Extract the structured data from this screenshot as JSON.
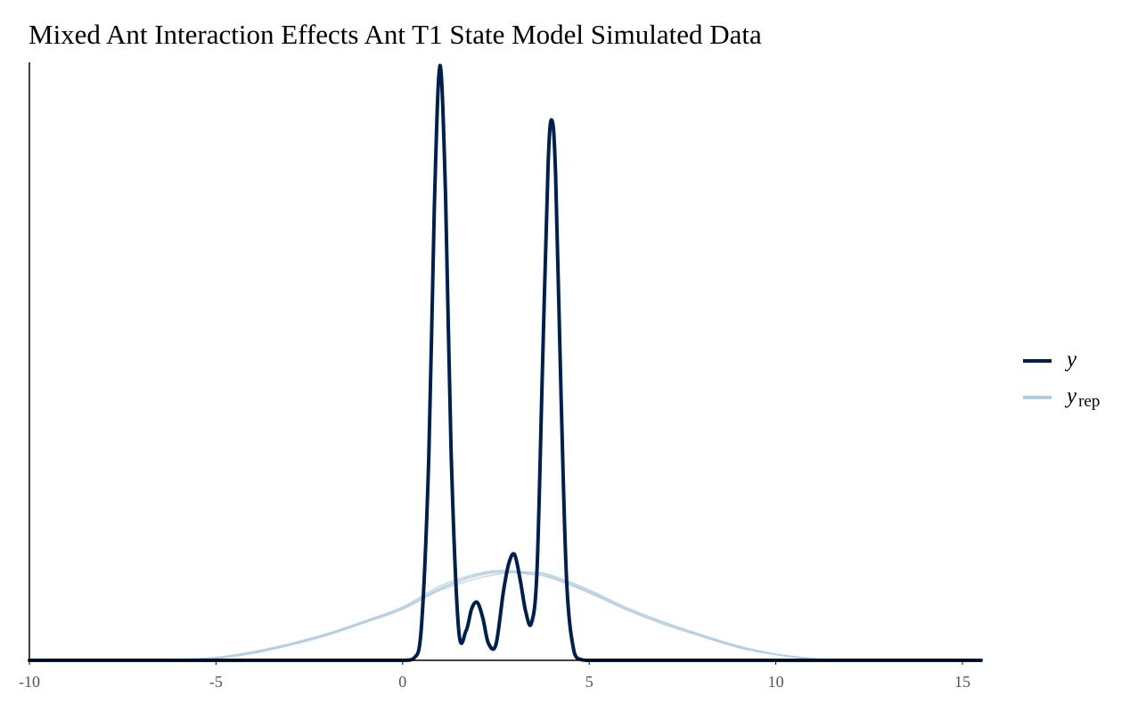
{
  "chart_data": {
    "type": "line",
    "title": "Mixed Ant Interaction Effects Ant T1 State Model Simulated Data",
    "xlabel": "",
    "ylabel": "",
    "xlim": [
      -10,
      15.5
    ],
    "ylim": [
      0,
      0.95
    ],
    "x_ticks": [
      -10,
      -5,
      0,
      5,
      10,
      15
    ],
    "x_tick_labels": [
      "-10",
      "-5",
      "0",
      "5",
      "10",
      "15"
    ],
    "y_ticks_shown": false,
    "grid": false,
    "legend_position": "right",
    "legend": [
      {
        "key": "y",
        "label": "y",
        "subscript": "",
        "color": "#011f4b"
      },
      {
        "key": "yrep",
        "label": "y",
        "subscript": "rep",
        "color": "#b3cde0"
      }
    ],
    "series": [
      {
        "name": "y",
        "color": "#011f4b",
        "x": [
          -10,
          -5,
          -1,
          0,
          0.3,
          0.5,
          0.7,
          0.85,
          1.0,
          1.15,
          1.3,
          1.5,
          1.7,
          1.85,
          2.0,
          2.15,
          2.3,
          2.5,
          2.7,
          2.85,
          3.0,
          3.15,
          3.3,
          3.45,
          3.6,
          3.75,
          3.9,
          4.0,
          4.1,
          4.25,
          4.4,
          4.6,
          4.8,
          5,
          6,
          10,
          15.5
        ],
        "y": [
          0,
          0,
          0,
          0,
          0.003,
          0.05,
          0.32,
          0.72,
          0.945,
          0.74,
          0.33,
          0.05,
          0.047,
          0.082,
          0.092,
          0.067,
          0.027,
          0.025,
          0.109,
          0.155,
          0.168,
          0.128,
          0.077,
          0.059,
          0.142,
          0.47,
          0.79,
          0.858,
          0.77,
          0.41,
          0.12,
          0.012,
          0.001,
          0,
          0,
          0,
          0
        ]
      },
      {
        "name": "yrep",
        "color": "#b3cde0",
        "x": [
          -10,
          -8,
          -6,
          -5,
          -4,
          -3,
          -2,
          -1,
          0,
          1,
          2,
          2.7,
          3.5,
          4,
          5,
          6,
          7,
          8,
          9,
          10,
          11,
          12,
          13,
          15.5
        ],
        "y": [
          0,
          0,
          0.001,
          0.004,
          0.012,
          0.025,
          0.041,
          0.061,
          0.082,
          0.113,
          0.134,
          0.14,
          0.136,
          0.131,
          0.108,
          0.081,
          0.058,
          0.039,
          0.021,
          0.009,
          0.002,
          0,
          0,
          0
        ]
      },
      {
        "name": "yrep",
        "color": "#b3cde0",
        "x": [
          -10,
          -8,
          -6,
          -5,
          -4,
          -3,
          -2,
          -1,
          0,
          1,
          2,
          2.7,
          3.5,
          4,
          5,
          6,
          7,
          8,
          9,
          10,
          11,
          12,
          13,
          15.5
        ],
        "y": [
          0,
          0,
          0.002,
          0.005,
          0.014,
          0.027,
          0.043,
          0.063,
          0.085,
          0.118,
          0.138,
          0.143,
          0.139,
          0.133,
          0.11,
          0.083,
          0.06,
          0.04,
          0.022,
          0.01,
          0.003,
          0,
          0,
          0
        ]
      },
      {
        "name": "yrep",
        "color": "#b3cde0",
        "x": [
          -10,
          -8,
          -6,
          -5,
          -4,
          -3,
          -2,
          -1,
          0,
          1,
          2,
          2.7,
          3.5,
          4,
          5,
          6,
          7,
          8,
          9,
          10,
          11,
          12,
          13,
          15.5
        ],
        "y": [
          0,
          0,
          0.001,
          0.003,
          0.011,
          0.024,
          0.04,
          0.06,
          0.081,
          0.111,
          0.13,
          0.138,
          0.14,
          0.135,
          0.112,
          0.084,
          0.061,
          0.041,
          0.023,
          0.01,
          0.003,
          0,
          0,
          0
        ]
      },
      {
        "name": "yrep",
        "color": "#b3cde0",
        "x": [
          -10,
          -8,
          -6,
          -5,
          -4,
          -3,
          -2,
          -1,
          0,
          1,
          2,
          2.7,
          3.5,
          4,
          5,
          6,
          7,
          8,
          9,
          10,
          11,
          12,
          13,
          15.5
        ],
        "y": [
          0,
          0,
          0.002,
          0.004,
          0.013,
          0.026,
          0.042,
          0.062,
          0.083,
          0.115,
          0.136,
          0.141,
          0.137,
          0.13,
          0.107,
          0.08,
          0.057,
          0.038,
          0.02,
          0.009,
          0.002,
          0,
          0,
          0
        ]
      }
    ]
  }
}
